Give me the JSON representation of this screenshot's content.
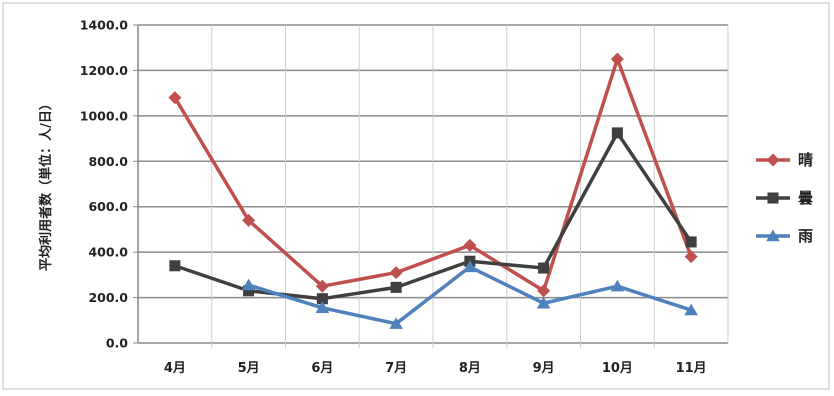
{
  "chart_data": {
    "type": "line",
    "categories": [
      "4月",
      "5月",
      "6月",
      "7月",
      "8月",
      "9月",
      "10月",
      "11月"
    ],
    "ylabel": "平均利用者数（単位：人/日）",
    "ylim": [
      0,
      1400
    ],
    "yticks": [
      "0.0",
      "200.0",
      "400.0",
      "600.0",
      "800.0",
      "1000.0",
      "1200.0",
      "1400.0"
    ],
    "grid": true,
    "legend_position": "right",
    "series": [
      {
        "name": "晴",
        "color": "#c0504d",
        "marker": "diamond",
        "values": [
          1080,
          540,
          250,
          310,
          430,
          230,
          1250,
          380
        ]
      },
      {
        "name": "曇",
        "color": "#404040",
        "marker": "square",
        "values": [
          340,
          230,
          195,
          245,
          360,
          330,
          925,
          445
        ]
      },
      {
        "name": "雨",
        "color": "#4f81bd",
        "marker": "triangle",
        "values": [
          null,
          255,
          155,
          85,
          335,
          175,
          250,
          145
        ]
      }
    ]
  }
}
